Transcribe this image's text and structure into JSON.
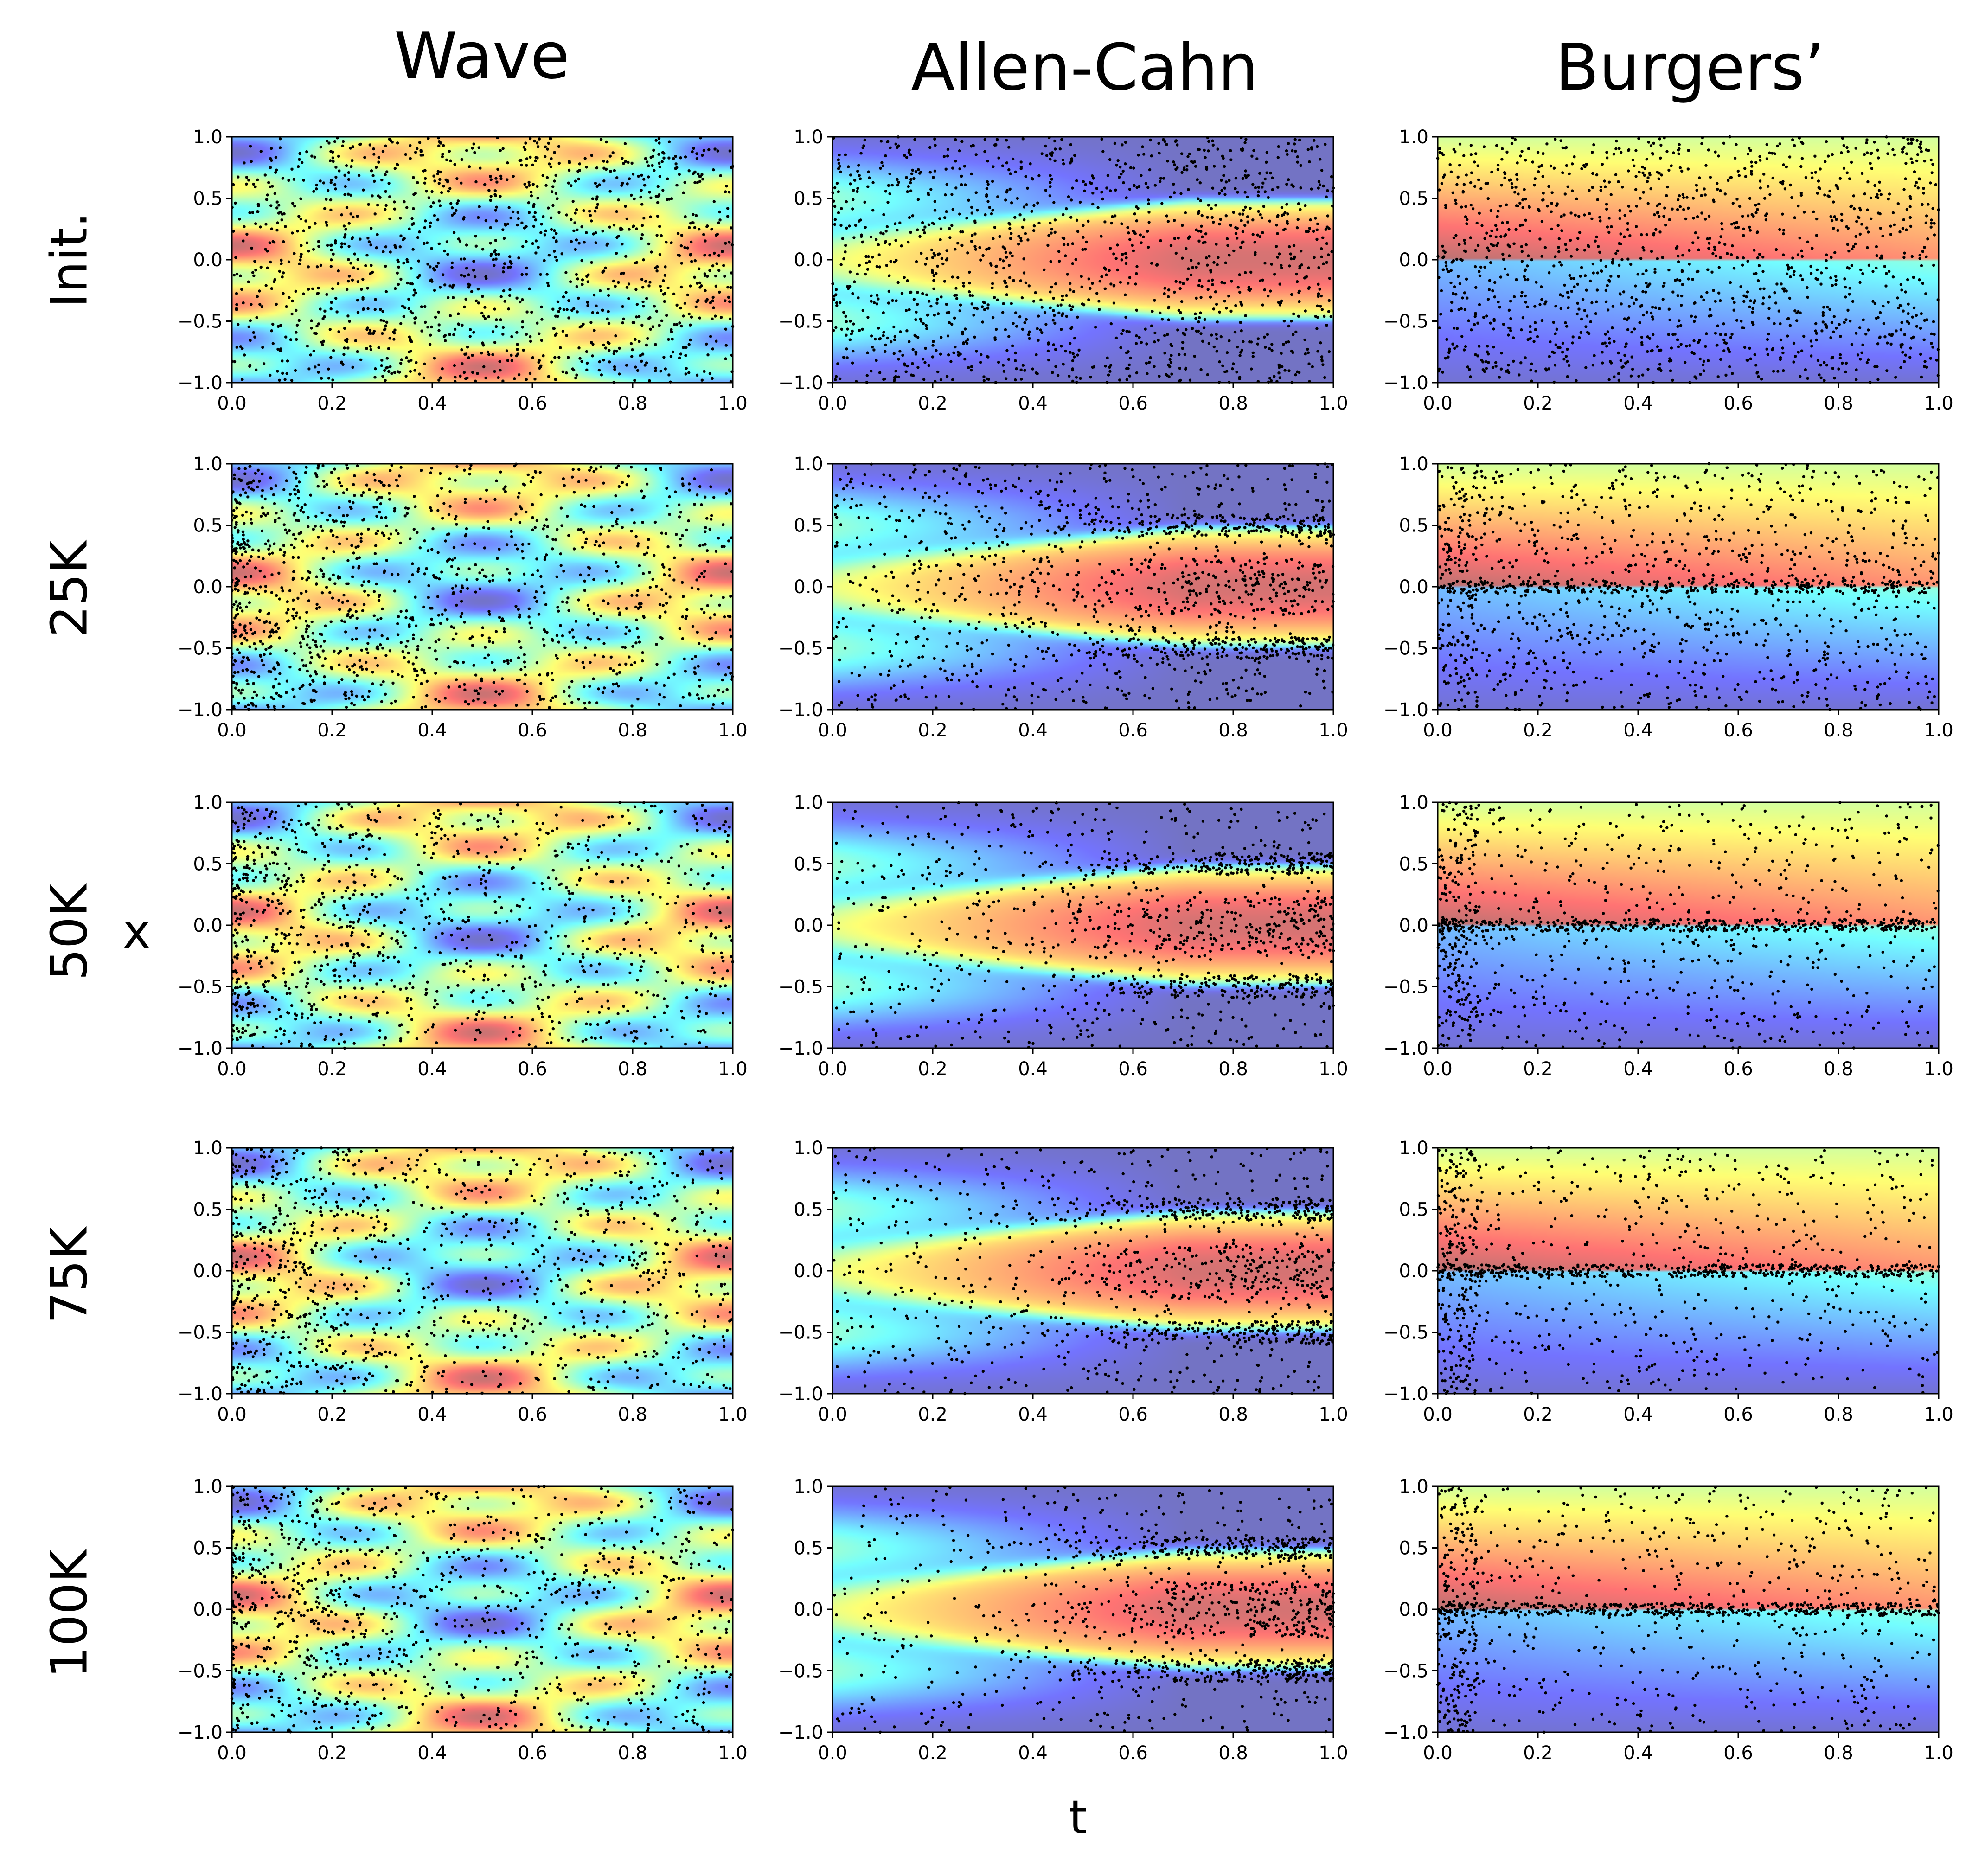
{
  "figure": {
    "column_titles": [
      "Wave",
      "Allen-Cahn",
      "Burgers’"
    ],
    "row_labels": [
      "Init.",
      "25K",
      "50K",
      "75K",
      "100K"
    ],
    "xlabel": "t",
    "ylabel": "x"
  },
  "chart_data": {
    "type": "heatmap",
    "description_of_series": "Grid of 15 heatmap panels (rows = training iterations, columns = PDE) with overlaid scatter of collocation points",
    "x_axis": {
      "label": "t",
      "range": [
        0.0,
        1.0
      ],
      "ticks": [
        "0.0",
        "0.2",
        "0.4",
        "0.6",
        "0.8",
        "1.0"
      ]
    },
    "y_axis": {
      "label": "x",
      "range": [
        -1.0,
        1.0
      ],
      "ticks": [
        "−1.0",
        "−0.5",
        "0.0",
        "0.5",
        "1.0"
      ]
    },
    "colormap": "jet",
    "heatmap_alpha": 0.55,
    "panels": [
      {
        "pde": "wave",
        "row": "Init.",
        "points": 1400,
        "pattern": "uniform"
      },
      {
        "pde": "allen-cahn",
        "row": "Init.",
        "points": 1400,
        "pattern": "uniform"
      },
      {
        "pde": "burgers",
        "row": "Init.",
        "points": 1400,
        "pattern": "uniform"
      },
      {
        "pde": "wave",
        "row": "25K",
        "points": 1400,
        "pattern": "uniform_left"
      },
      {
        "pde": "allen-cahn",
        "row": "25K",
        "points": 1400,
        "pattern": "interfaces_weak"
      },
      {
        "pde": "burgers",
        "row": "25K",
        "points": 1400,
        "pattern": "shock_weak"
      },
      {
        "pde": "wave",
        "row": "50K",
        "points": 1200,
        "pattern": "uniform_left"
      },
      {
        "pde": "allen-cahn",
        "row": "50K",
        "points": 1200,
        "pattern": "interfaces"
      },
      {
        "pde": "burgers",
        "row": "50K",
        "points": 1200,
        "pattern": "shock"
      },
      {
        "pde": "wave",
        "row": "75K",
        "points": 1200,
        "pattern": "uniform_left"
      },
      {
        "pde": "allen-cahn",
        "row": "75K",
        "points": 1200,
        "pattern": "interfaces"
      },
      {
        "pde": "burgers",
        "row": "75K",
        "points": 1200,
        "pattern": "shock_strong"
      },
      {
        "pde": "wave",
        "row": "100K",
        "points": 1200,
        "pattern": "uniform_left"
      },
      {
        "pde": "allen-cahn",
        "row": "100K",
        "points": 1200,
        "pattern": "interfaces_strong"
      },
      {
        "pde": "burgers",
        "row": "100K",
        "points": 1200,
        "pattern": "shock_strong"
      }
    ]
  }
}
